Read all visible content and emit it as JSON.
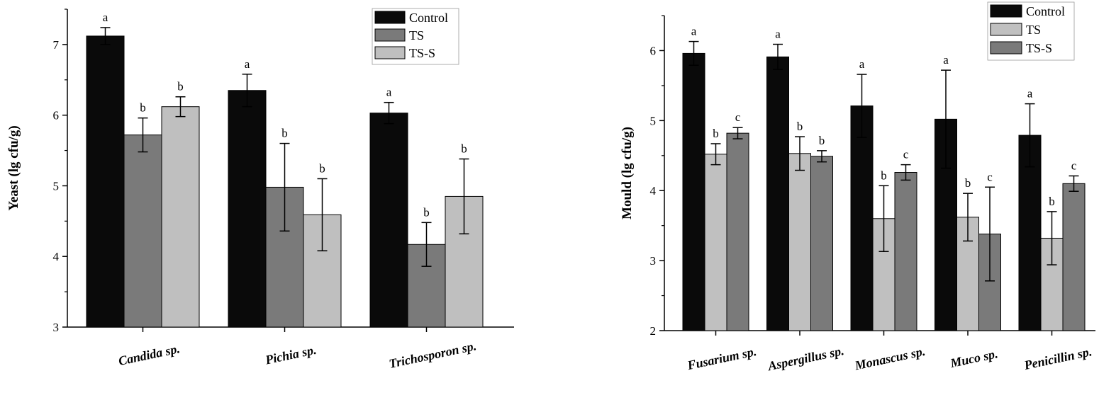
{
  "chart_data": [
    {
      "type": "bar",
      "ylabel": "Yeast (lg cfu/g)",
      "ylim": [
        3,
        7.5
      ],
      "yticks": [
        3,
        4,
        5,
        6,
        7
      ],
      "categories": [
        "Candida sp.",
        "Pichia sp.",
        "Trichosporon sp."
      ],
      "series": [
        {
          "name": "Control",
          "color": "#0a0a0a",
          "values": [
            7.12,
            6.35,
            6.03
          ],
          "errors": [
            0.12,
            0.23,
            0.15
          ],
          "labels": [
            "a",
            "a",
            "a"
          ]
        },
        {
          "name": "TS",
          "color": "#7a7a7a",
          "values": [
            5.72,
            4.98,
            4.17
          ],
          "errors": [
            0.24,
            0.62,
            0.31
          ],
          "labels": [
            "b",
            "b",
            "b"
          ]
        },
        {
          "name": "TS-S",
          "color": "#bfbfbf",
          "values": [
            6.12,
            4.59,
            4.85
          ],
          "errors": [
            0.14,
            0.51,
            0.53
          ],
          "labels": [
            "b",
            "b",
            "b"
          ]
        }
      ],
      "legend": "top-right"
    },
    {
      "type": "bar",
      "ylabel": "Mould (lg cfu/g)",
      "ylim": [
        2,
        6.5
      ],
      "yticks": [
        2,
        3,
        4,
        5,
        6
      ],
      "categories": [
        "Fusarium sp.",
        "Aspergillus sp.",
        "Monascus sp.",
        "Muco sp.",
        "Penicillin sp."
      ],
      "series": [
        {
          "name": "Control",
          "color": "#0a0a0a",
          "values": [
            5.96,
            5.91,
            5.21,
            5.02,
            4.79
          ],
          "errors": [
            0.17,
            0.18,
            0.45,
            0.7,
            0.45
          ],
          "labels": [
            "a",
            "a",
            "a",
            "a",
            "a"
          ]
        },
        {
          "name": "TS",
          "color": "#c0c0c0",
          "values": [
            4.52,
            4.53,
            3.6,
            3.62,
            3.32
          ],
          "errors": [
            0.15,
            0.24,
            0.47,
            0.34,
            0.38
          ],
          "labels": [
            "b",
            "b",
            "b",
            "b",
            "b"
          ]
        },
        {
          "name": "TS-S",
          "color": "#7a7a7a",
          "values": [
            4.82,
            4.49,
            4.26,
            3.38,
            4.1
          ],
          "errors": [
            0.08,
            0.08,
            0.11,
            0.67,
            0.11
          ],
          "labels": [
            "c",
            "b",
            "c",
            "c",
            "c"
          ]
        }
      ],
      "legend": "top-right"
    }
  ]
}
